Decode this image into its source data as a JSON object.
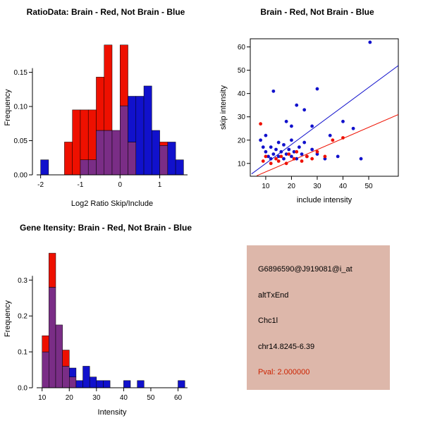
{
  "colors": {
    "red": "#ee1000",
    "blue": "#1111cc",
    "overlap": "#7a2d86",
    "axis": "#000000",
    "pval": "#cc2200",
    "info_bg": "#ddb7aa"
  },
  "chart_data": [
    {
      "type": "bar",
      "variant": "overlaid-histogram",
      "title": "RatioData: Brain - Red, Not Brain - Blue",
      "xlabel": "Log2 Ratio Skip/Include",
      "ylabel": "Frequency",
      "legend": {
        "red": "Brain",
        "blue": "Not Brain"
      },
      "bin_width": 0.2,
      "bins": [
        {
          "x0": -2.0,
          "red": 0,
          "blue": 0.022
        },
        {
          "x0": -1.4,
          "red": 0.048,
          "blue": 0
        },
        {
          "x0": -1.2,
          "red": 0.095,
          "blue": 0
        },
        {
          "x0": -1.0,
          "red": 0.095,
          "blue": 0.022
        },
        {
          "x0": -0.8,
          "red": 0.095,
          "blue": 0.022
        },
        {
          "x0": -0.6,
          "red": 0.143,
          "blue": 0.065
        },
        {
          "x0": -0.4,
          "red": 0.19,
          "blue": 0.065
        },
        {
          "x0": -0.2,
          "red": 0.065,
          "blue": 0.065
        },
        {
          "x0": 0.0,
          "red": 0.19,
          "blue": 0.101
        },
        {
          "x0": 0.2,
          "red": 0.048,
          "blue": 0.115
        },
        {
          "x0": 0.4,
          "red": 0,
          "blue": 0.115
        },
        {
          "x0": 0.6,
          "red": 0,
          "blue": 0.13
        },
        {
          "x0": 0.8,
          "red": 0,
          "blue": 0.065
        },
        {
          "x0": 1.0,
          "red": 0.048,
          "blue": 0.043
        },
        {
          "x0": 1.2,
          "red": 0,
          "blue": 0.048
        },
        {
          "x0": 1.4,
          "red": 0,
          "blue": 0.022
        }
      ],
      "x_ticks": [
        -2,
        -1,
        0,
        1
      ],
      "y_ticks": [
        0,
        0.05,
        0.1,
        0.15
      ],
      "y_tick_labels": [
        "0.00",
        "0.05",
        "0.10",
        "0.15"
      ],
      "xlim": [
        -2.1,
        1.7
      ],
      "ylim": [
        0,
        0.197
      ],
      "grid": false
    },
    {
      "type": "scatter",
      "title": "Brain - Red, Not Brain - Blue",
      "xlabel": "include intensity",
      "ylabel": "skip intensity",
      "x_ticks": [
        10,
        20,
        30,
        40,
        50
      ],
      "y_ticks": [
        10,
        20,
        30,
        40,
        50,
        60
      ],
      "xlim": [
        4,
        61.5
      ],
      "ylim": [
        4.5,
        63.5
      ],
      "grid": false,
      "series": [
        {
          "name": "Not Brain",
          "color_key": "blue",
          "points": [
            [
              50.5,
              62
            ],
            [
              13,
              41
            ],
            [
              30,
              42
            ],
            [
              22,
              35
            ],
            [
              25,
              33
            ],
            [
              40,
              28
            ],
            [
              44,
              25
            ],
            [
              18,
              28
            ],
            [
              20,
              26
            ],
            [
              28,
              26
            ],
            [
              8,
              20
            ],
            [
              9,
              17
            ],
            [
              10,
              15
            ],
            [
              10,
              22
            ],
            [
              11,
              13
            ],
            [
              12,
              12
            ],
            [
              12,
              17
            ],
            [
              13,
              14
            ],
            [
              14,
              16
            ],
            [
              15,
              13
            ],
            [
              15,
              19
            ],
            [
              16,
              15
            ],
            [
              17,
              12
            ],
            [
              17,
              18
            ],
            [
              18,
              14
            ],
            [
              19,
              16
            ],
            [
              20,
              13
            ],
            [
              20,
              20
            ],
            [
              21,
              15
            ],
            [
              22,
              12
            ],
            [
              23,
              17
            ],
            [
              24,
              14
            ],
            [
              25,
              19
            ],
            [
              26,
              13
            ],
            [
              28,
              16
            ],
            [
              30,
              14
            ],
            [
              33,
              12
            ],
            [
              35,
              22
            ],
            [
              38,
              13
            ],
            [
              47,
              12
            ]
          ]
        },
        {
          "name": "Brain",
          "color_key": "red",
          "points": [
            [
              8,
              27
            ],
            [
              9,
              11
            ],
            [
              10,
              13
            ],
            [
              12,
              10
            ],
            [
              14,
              12
            ],
            [
              15,
              11
            ],
            [
              16,
              13
            ],
            [
              18,
              10
            ],
            [
              19,
              14
            ],
            [
              21,
              12
            ],
            [
              22,
              15
            ],
            [
              24,
              11
            ],
            [
              26,
              13
            ],
            [
              28,
              12
            ],
            [
              30,
              15
            ],
            [
              33,
              13
            ],
            [
              36,
              20
            ],
            [
              40,
              21
            ]
          ]
        }
      ],
      "fit_lines": [
        {
          "color_key": "blue",
          "x1": 4.5,
          "y1": 5.5,
          "x2": 61.5,
          "y2": 52
        },
        {
          "color_key": "red",
          "x1": 6.5,
          "y1": 4.7,
          "x2": 61.5,
          "y2": 31
        }
      ]
    },
    {
      "type": "bar",
      "variant": "overlaid-histogram",
      "title": "Gene Itensity: Brain - Red, Not Brain - Blue",
      "xlabel": "Intensity",
      "ylabel": "Frequency",
      "legend": {
        "red": "Brain",
        "blue": "Not Brain"
      },
      "bin_width": 2.5,
      "bins": [
        {
          "x0": 10,
          "red": 0.145,
          "blue": 0.1
        },
        {
          "x0": 12.5,
          "red": 0.375,
          "blue": 0.28
        },
        {
          "x0": 15,
          "red": 0.175,
          "blue": 0.175
        },
        {
          "x0": 17.5,
          "red": 0.105,
          "blue": 0.06
        },
        {
          "x0": 20,
          "red": 0.03,
          "blue": 0.055
        },
        {
          "x0": 22.5,
          "red": 0,
          "blue": 0.02
        },
        {
          "x0": 25,
          "red": 0,
          "blue": 0.06
        },
        {
          "x0": 27.5,
          "red": 0,
          "blue": 0.03
        },
        {
          "x0": 30,
          "red": 0,
          "blue": 0.02
        },
        {
          "x0": 32.5,
          "red": 0,
          "blue": 0.02
        },
        {
          "x0": 40,
          "red": 0,
          "blue": 0.02
        },
        {
          "x0": 45,
          "red": 0,
          "blue": 0.02
        },
        {
          "x0": 60,
          "red": 0,
          "blue": 0.02
        }
      ],
      "x_ticks": [
        10,
        20,
        30,
        40,
        50,
        60
      ],
      "y_ticks": [
        0,
        0.1,
        0.2,
        0.3
      ],
      "y_tick_labels": [
        "0.0",
        "0.1",
        "0.2",
        "0.3"
      ],
      "xlim": [
        8,
        63.5
      ],
      "ylim": [
        0,
        0.385
      ],
      "grid": false
    }
  ],
  "info_panel": {
    "lines": [
      "G6896590@J919081@i_at",
      "altTxEnd",
      "Chc1l",
      "chr14.8245-6.39",
      "Pval: 2.000000"
    ]
  }
}
